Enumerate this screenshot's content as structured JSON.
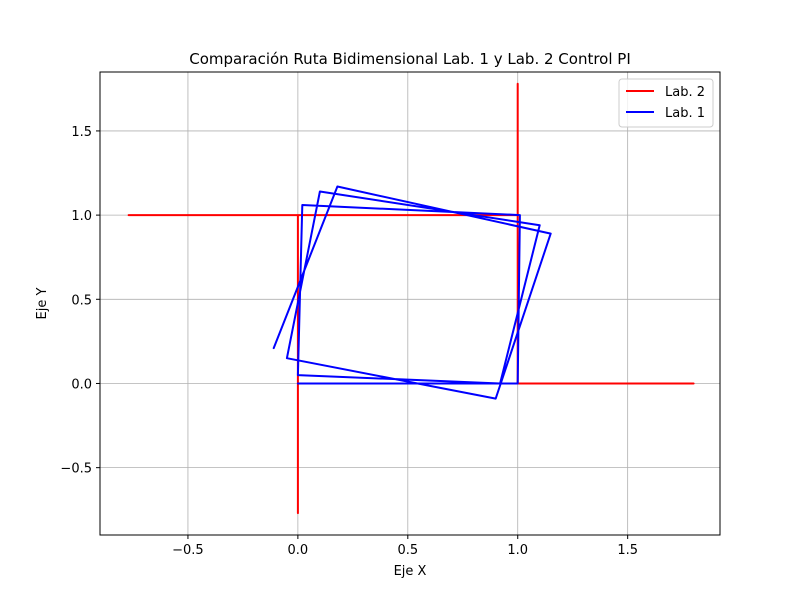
{
  "chart_data": {
    "type": "line",
    "title": "Comparación Ruta Bidimensional Lab. 1 y Lab. 2 Control PI",
    "xlabel": "Eje X",
    "ylabel": "Eje Y",
    "xlim": [
      -0.9,
      1.92
    ],
    "ylim": [
      -0.9,
      1.85
    ],
    "xticks": [
      -0.5,
      0.0,
      0.5,
      1.0,
      1.5
    ],
    "xtick_labels": [
      "−0.5",
      "0.0",
      "0.5",
      "1.0",
      "1.5"
    ],
    "yticks": [
      -0.5,
      0.0,
      0.5,
      1.0,
      1.5
    ],
    "ytick_labels": [
      "−0.5",
      "0.0",
      "0.5",
      "1.0",
      "1.5"
    ],
    "grid": true,
    "legend_position": "top-right",
    "series": [
      {
        "name": "Lab. 2",
        "color": "#ff0000",
        "x": [
          0.0,
          0.0,
          0.0,
          0.0,
          -0.77,
          1.0,
          1.0,
          1.0,
          1.0,
          1.8,
          0.0,
          0.0
        ],
        "y": [
          -0.77,
          0.0,
          0.0,
          1.0,
          1.0,
          1.0,
          1.78,
          1.0,
          0.0,
          0.0,
          0.0,
          0.0
        ]
      },
      {
        "name": "Lab. 1",
        "color": "#0000ff",
        "x": [
          0.0,
          1.0,
          1.01,
          0.02,
          0.0,
          0.92,
          1.1,
          0.1,
          -0.05,
          0.9,
          1.15,
          0.18,
          -0.11
        ],
        "y": [
          0.0,
          0.0,
          1.0,
          1.06,
          0.05,
          0.0,
          0.94,
          1.14,
          0.15,
          -0.09,
          0.89,
          1.17,
          0.21
        ]
      }
    ]
  }
}
